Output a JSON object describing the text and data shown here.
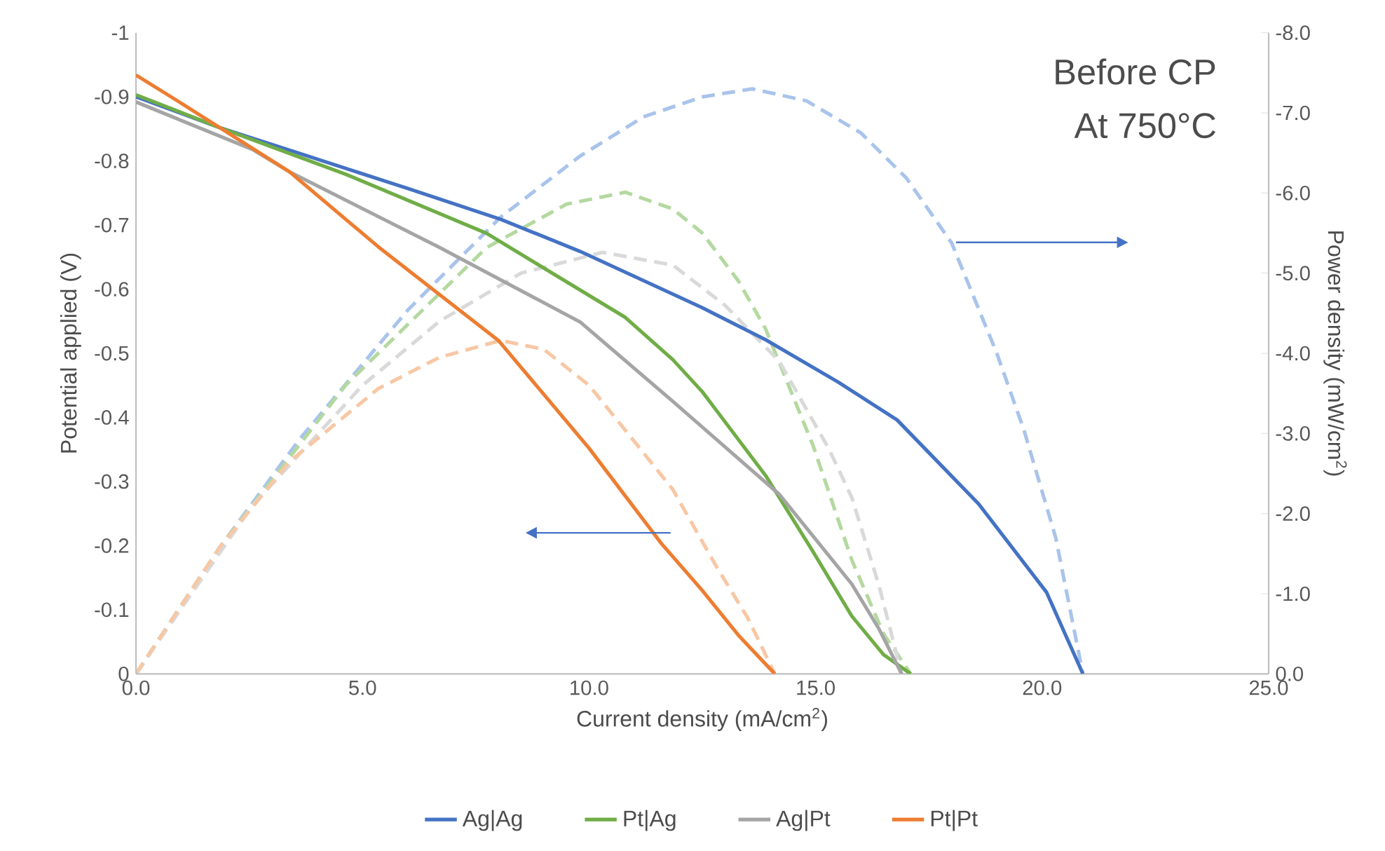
{
  "chart_data": {
    "type": "line",
    "xlabel": "Current density (mA/cm$^{2}$)",
    "ylabel": "Potential applied (V)",
    "y2label": "Power density (mW/cm$^{2}$)",
    "annotations": [
      "Before CP",
      "At 750°C"
    ],
    "xlim": [
      0,
      25
    ],
    "xticks": [
      {
        "value": 0,
        "label": "0.0"
      },
      {
        "value": 5,
        "label": "5.0"
      },
      {
        "value": 10,
        "label": "10.0"
      },
      {
        "value": 15,
        "label": "15.0"
      },
      {
        "value": 20,
        "label": "20.0"
      },
      {
        "value": 25,
        "label": "25.0"
      }
    ],
    "ylim": [
      0,
      -1
    ],
    "yticks": [
      0,
      -0.1,
      -0.2,
      -0.3,
      -0.4,
      -0.5,
      -0.6,
      -0.7,
      -0.8,
      -0.9,
      -1
    ],
    "y2lim": [
      0,
      -8
    ],
    "y2ticks": [
      {
        "value": 0,
        "label": "0.0"
      },
      {
        "value": -1,
        "label": "-1.0"
      },
      {
        "value": -2,
        "label": "-2.0"
      },
      {
        "value": -3,
        "label": "-3.0"
      },
      {
        "value": -4,
        "label": "-4.0"
      },
      {
        "value": -5,
        "label": "-5.0"
      },
      {
        "value": -6,
        "label": "-6.0"
      },
      {
        "value": -7,
        "label": "-7.0"
      },
      {
        "value": -8,
        "label": "-8.0"
      }
    ],
    "legend": "bottom",
    "marker": "none",
    "series": [
      {
        "name": "Ag|Ag",
        "color": "#4472c4",
        "line_style": "solid",
        "x": [
          0,
          1.85,
          3.6,
          6,
          8.05,
          9.8,
          12.5,
          13.9,
          15.5,
          16.8,
          18.6,
          20.1,
          20.9
        ],
        "values": [
          -0.9,
          -0.852,
          -0.812,
          -0.757,
          -0.709,
          -0.659,
          -0.571,
          -0.521,
          -0.455,
          -0.396,
          -0.265,
          -0.127,
          0
        ]
      },
      {
        "name": "Pt|Ag",
        "color": "#70ad47",
        "line_style": "solid",
        "x": [
          0,
          1.85,
          4.64,
          7.74,
          10.8,
          11.85,
          12.5,
          13.9,
          14.95,
          15.8,
          16.5,
          17.1
        ],
        "values": [
          -0.903,
          -0.852,
          -0.779,
          -0.687,
          -0.556,
          -0.49,
          -0.44,
          -0.309,
          -0.19,
          -0.09,
          -0.03,
          0
        ]
      },
      {
        "name": "Ag|Pt",
        "color": "#a5a5a5",
        "line_style": "solid",
        "x": [
          0,
          2.57,
          3.39,
          6.7,
          9.8,
          11.85,
          14.2,
          15.8,
          16.4,
          16.9
        ],
        "values": [
          -0.892,
          -0.818,
          -0.783,
          -0.665,
          -0.549,
          -0.425,
          -0.28,
          -0.14,
          -0.07,
          0
        ]
      },
      {
        "name": "Pt|Pt",
        "color": "#ed7d31",
        "line_style": "solid",
        "x": [
          0,
          1,
          1.85,
          3.39,
          5.35,
          8,
          10,
          11.6,
          12.5,
          13.3,
          14.1
        ],
        "values": [
          -0.934,
          -0.89,
          -0.852,
          -0.783,
          -0.666,
          -0.52,
          -0.352,
          -0.203,
          -0.13,
          -0.06,
          0
        ]
      },
      {
        "color": "#a9c4eb",
        "line_style": "dashed",
        "axis": "y2",
        "x": [
          0,
          1.85,
          3.6,
          6,
          8.05,
          9.8,
          11.2,
          12.5,
          13.6,
          14.8,
          16,
          17,
          18,
          19,
          19.6,
          20.3,
          20.9
        ],
        "values": [
          0,
          -1.58,
          -2.92,
          -4.54,
          -5.7,
          -6.46,
          -6.95,
          -7.2,
          -7.3,
          -7.15,
          -6.75,
          -6.19,
          -5.38,
          -4.0,
          -3.04,
          -1.7,
          0
        ]
      },
      {
        "color": "#b4d9a0",
        "line_style": "dashed",
        "axis": "y2",
        "x": [
          0,
          1.85,
          4.64,
          7.74,
          9.5,
          10.8,
          11.85,
          12.5,
          13.3,
          13.9,
          14.95,
          15.8,
          16.5,
          17.1
        ],
        "values": [
          0,
          -1.58,
          -3.61,
          -5.32,
          -5.86,
          -6.01,
          -5.8,
          -5.5,
          -4.9,
          -4.3,
          -2.84,
          -1.42,
          -0.5,
          0
        ]
      },
      {
        "color": "#d9d9d9",
        "line_style": "dashed",
        "axis": "y2",
        "x": [
          0,
          2.57,
          5,
          6.7,
          8.5,
          10.3,
          11.85,
          13,
          14.2,
          15.3,
          15.8,
          16.4,
          16.9
        ],
        "values": [
          0,
          -2.1,
          -3.6,
          -4.4,
          -5.0,
          -5.26,
          -5.1,
          -4.6,
          -3.9,
          -2.8,
          -2.2,
          -1.1,
          0
        ]
      },
      {
        "color": "#f8c7a4",
        "line_style": "dashed",
        "axis": "y2",
        "x": [
          0,
          1.85,
          3.39,
          5.35,
          6.7,
          8.05,
          9,
          10,
          11,
          11.85,
          12.8,
          13.5,
          14.1
        ],
        "values": [
          0,
          -1.58,
          -2.65,
          -3.56,
          -3.95,
          -4.16,
          -4.05,
          -3.6,
          -2.9,
          -2.3,
          -1.35,
          -0.7,
          0
        ]
      }
    ]
  }
}
